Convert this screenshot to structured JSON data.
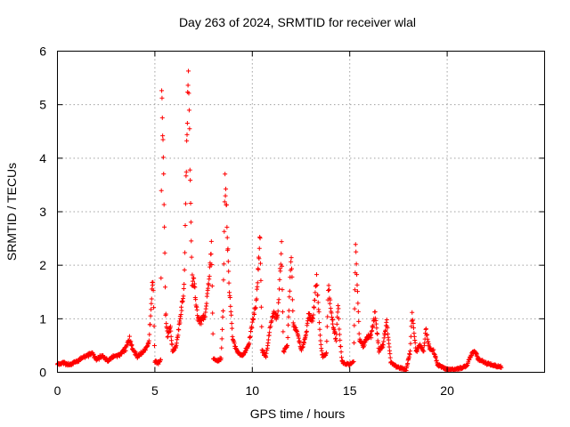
{
  "chart_data": {
    "type": "scatter",
    "title": "Day 263 of 2024, SRMTID for receiver wlal",
    "xlabel": "GPS time / hours",
    "ylabel": "SRMTID / TECUs",
    "xlim": [
      0,
      25
    ],
    "ylim": [
      0,
      6
    ],
    "x_ticks": [
      0,
      5,
      10,
      15,
      20
    ],
    "y_ticks": [
      0,
      1,
      2,
      3,
      4,
      5,
      6
    ],
    "x_tick_labels": [
      "0",
      "5",
      "10",
      "15",
      "20"
    ],
    "y_tick_labels": [
      "0",
      "1",
      "2",
      "3",
      "4",
      "5",
      "6"
    ],
    "grid": true,
    "marker": "+",
    "series": [
      {
        "name": "SRMTID",
        "color": "#ff0000",
        "profile": [
          [
            0.0,
            0.15
          ],
          [
            0.3,
            0.18
          ],
          [
            0.6,
            0.14
          ],
          [
            0.9,
            0.18
          ],
          [
            1.2,
            0.25
          ],
          [
            1.5,
            0.32
          ],
          [
            1.8,
            0.35
          ],
          [
            2.0,
            0.25
          ],
          [
            2.3,
            0.3
          ],
          [
            2.6,
            0.22
          ],
          [
            2.9,
            0.3
          ],
          [
            3.2,
            0.33
          ],
          [
            3.5,
            0.45
          ],
          [
            3.7,
            0.62
          ],
          [
            3.9,
            0.4
          ],
          [
            4.1,
            0.3
          ],
          [
            4.3,
            0.35
          ],
          [
            4.5,
            0.42
          ],
          [
            4.7,
            0.6
          ],
          [
            4.8,
            1.2
          ],
          [
            4.9,
            1.8
          ],
          [
            5.0,
            0.2
          ],
          [
            5.2,
            0.18
          ],
          [
            5.3,
            0.22
          ],
          [
            5.35,
            5.05
          ],
          [
            5.45,
            3.8
          ],
          [
            5.55,
            1.1
          ],
          [
            5.65,
            0.7
          ],
          [
            5.8,
            0.85
          ],
          [
            5.9,
            0.4
          ],
          [
            6.1,
            0.5
          ],
          [
            6.3,
            1.0
          ],
          [
            6.5,
            1.6
          ],
          [
            6.6,
            3.5
          ],
          [
            6.7,
            5.65
          ],
          [
            6.8,
            4.0
          ],
          [
            6.9,
            1.7
          ],
          [
            7.0,
            1.75
          ],
          [
            7.2,
            1.0
          ],
          [
            7.4,
            0.95
          ],
          [
            7.6,
            1.1
          ],
          [
            7.8,
            1.8
          ],
          [
            7.9,
            2.4
          ],
          [
            8.0,
            0.25
          ],
          [
            8.2,
            0.22
          ],
          [
            8.4,
            0.25
          ],
          [
            8.5,
            1.2
          ],
          [
            8.6,
            3.6
          ],
          [
            8.7,
            2.8
          ],
          [
            8.8,
            1.6
          ],
          [
            8.9,
            1.2
          ],
          [
            9.0,
            0.6
          ],
          [
            9.2,
            0.4
          ],
          [
            9.5,
            0.3
          ],
          [
            9.8,
            0.5
          ],
          [
            10.0,
            0.9
          ],
          [
            10.2,
            1.3
          ],
          [
            10.4,
            2.6
          ],
          [
            10.5,
            0.4
          ],
          [
            10.7,
            0.3
          ],
          [
            10.9,
            0.8
          ],
          [
            11.1,
            1.1
          ],
          [
            11.3,
            1.0
          ],
          [
            11.5,
            2.4
          ],
          [
            11.6,
            0.4
          ],
          [
            11.8,
            0.5
          ],
          [
            12.0,
            2.25
          ],
          [
            12.1,
            0.9
          ],
          [
            12.3,
            0.8
          ],
          [
            12.5,
            0.4
          ],
          [
            12.7,
            0.6
          ],
          [
            12.9,
            1.1
          ],
          [
            13.1,
            0.95
          ],
          [
            13.3,
            1.75
          ],
          [
            13.5,
            0.6
          ],
          [
            13.6,
            0.3
          ],
          [
            13.8,
            0.35
          ],
          [
            13.9,
            1.6
          ],
          [
            14.1,
            1.0
          ],
          [
            14.3,
            0.6
          ],
          [
            14.4,
            1.25
          ],
          [
            14.5,
            0.6
          ],
          [
            14.6,
            0.2
          ],
          [
            14.8,
            0.15
          ],
          [
            15.0,
            0.15
          ],
          [
            15.2,
            0.2
          ],
          [
            15.3,
            2.3
          ],
          [
            15.4,
            1.5
          ],
          [
            15.5,
            0.6
          ],
          [
            15.7,
            0.5
          ],
          [
            15.9,
            0.65
          ],
          [
            16.1,
            0.7
          ],
          [
            16.3,
            1.1
          ],
          [
            16.5,
            0.4
          ],
          [
            16.7,
            0.5
          ],
          [
            16.9,
            0.95
          ],
          [
            17.1,
            0.2
          ],
          [
            17.3,
            0.12
          ],
          [
            17.6,
            0.08
          ],
          [
            17.9,
            0.05
          ],
          [
            18.1,
            0.4
          ],
          [
            18.2,
            1.1
          ],
          [
            18.4,
            0.4
          ],
          [
            18.6,
            0.5
          ],
          [
            18.8,
            0.4
          ],
          [
            18.9,
            0.8
          ],
          [
            19.1,
            0.45
          ],
          [
            19.3,
            0.4
          ],
          [
            19.5,
            0.15
          ],
          [
            19.8,
            0.08
          ],
          [
            20.1,
            0.05
          ],
          [
            20.4,
            0.06
          ],
          [
            20.7,
            0.08
          ],
          [
            21.0,
            0.12
          ],
          [
            21.2,
            0.3
          ],
          [
            21.4,
            0.4
          ],
          [
            21.6,
            0.25
          ],
          [
            21.9,
            0.18
          ],
          [
            22.2,
            0.15
          ],
          [
            22.5,
            0.12
          ],
          [
            22.8,
            0.1
          ]
        ]
      }
    ]
  }
}
